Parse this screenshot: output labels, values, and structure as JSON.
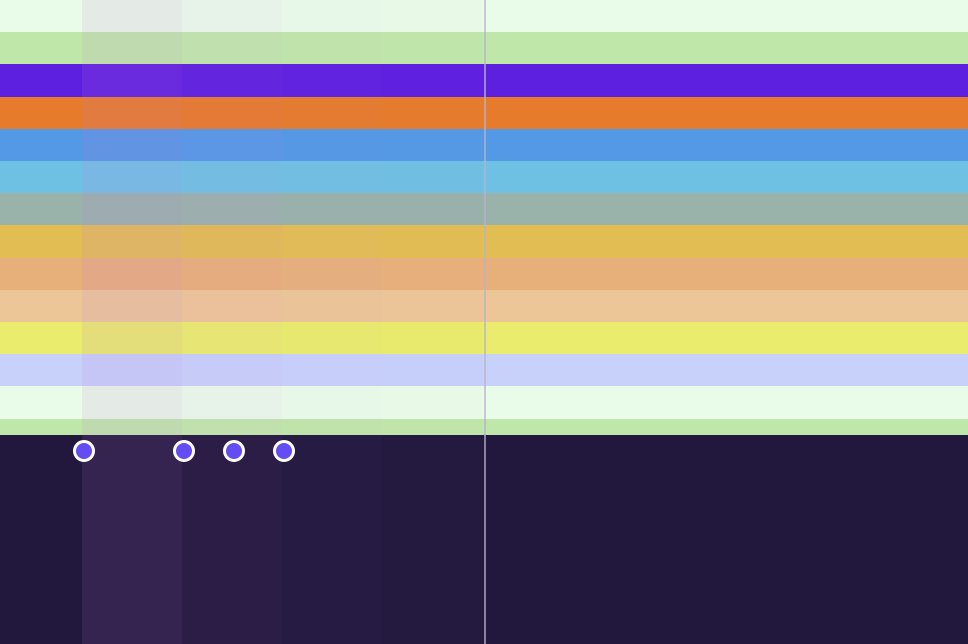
{
  "bands": [
    {
      "name": "band-mint-top",
      "color": "#e9fbe9"
    },
    {
      "name": "band-light-green-top",
      "color": "#c0e7aa"
    },
    {
      "name": "band-violet",
      "color": "#5e20e0"
    },
    {
      "name": "band-orange",
      "color": "#e57b2b"
    },
    {
      "name": "band-blue",
      "color": "#5499e5"
    },
    {
      "name": "band-sky",
      "color": "#6fc1e3"
    },
    {
      "name": "band-gray-teal",
      "color": "#99b2aa"
    },
    {
      "name": "band-mustard",
      "color": "#e2bd54"
    },
    {
      "name": "band-peach",
      "color": "#e7b07b"
    },
    {
      "name": "band-light-peach",
      "color": "#ecc697"
    },
    {
      "name": "band-yellow",
      "color": "#e9ec6d"
    },
    {
      "name": "band-periwinkle",
      "color": "#c7d1fa"
    },
    {
      "name": "band-mint-bottom",
      "color": "#e9fbe9"
    },
    {
      "name": "band-light-green-bottom",
      "color": "#c0e7aa"
    }
  ],
  "background_color": "#22183d",
  "divider_color": "#b7b2cc",
  "column_highlights": [
    {
      "name": "column-highlight-1",
      "color": "rgba(200,120,220,0.12)"
    },
    {
      "name": "column-highlight-2",
      "color": "rgba(200,120,220,0.06)"
    },
    {
      "name": "column-highlight-3",
      "color": "rgba(200,120,220,0.03)"
    },
    {
      "name": "column-highlight-4",
      "color": "rgba(200,120,220,0.015)"
    }
  ],
  "markers": [
    {
      "name": "marker-dot-1",
      "color": "#634cf2"
    },
    {
      "name": "marker-dot-2",
      "color": "#634cf2"
    },
    {
      "name": "marker-dot-3",
      "color": "#634cf2"
    },
    {
      "name": "marker-dot-4",
      "color": "#634cf2"
    }
  ]
}
